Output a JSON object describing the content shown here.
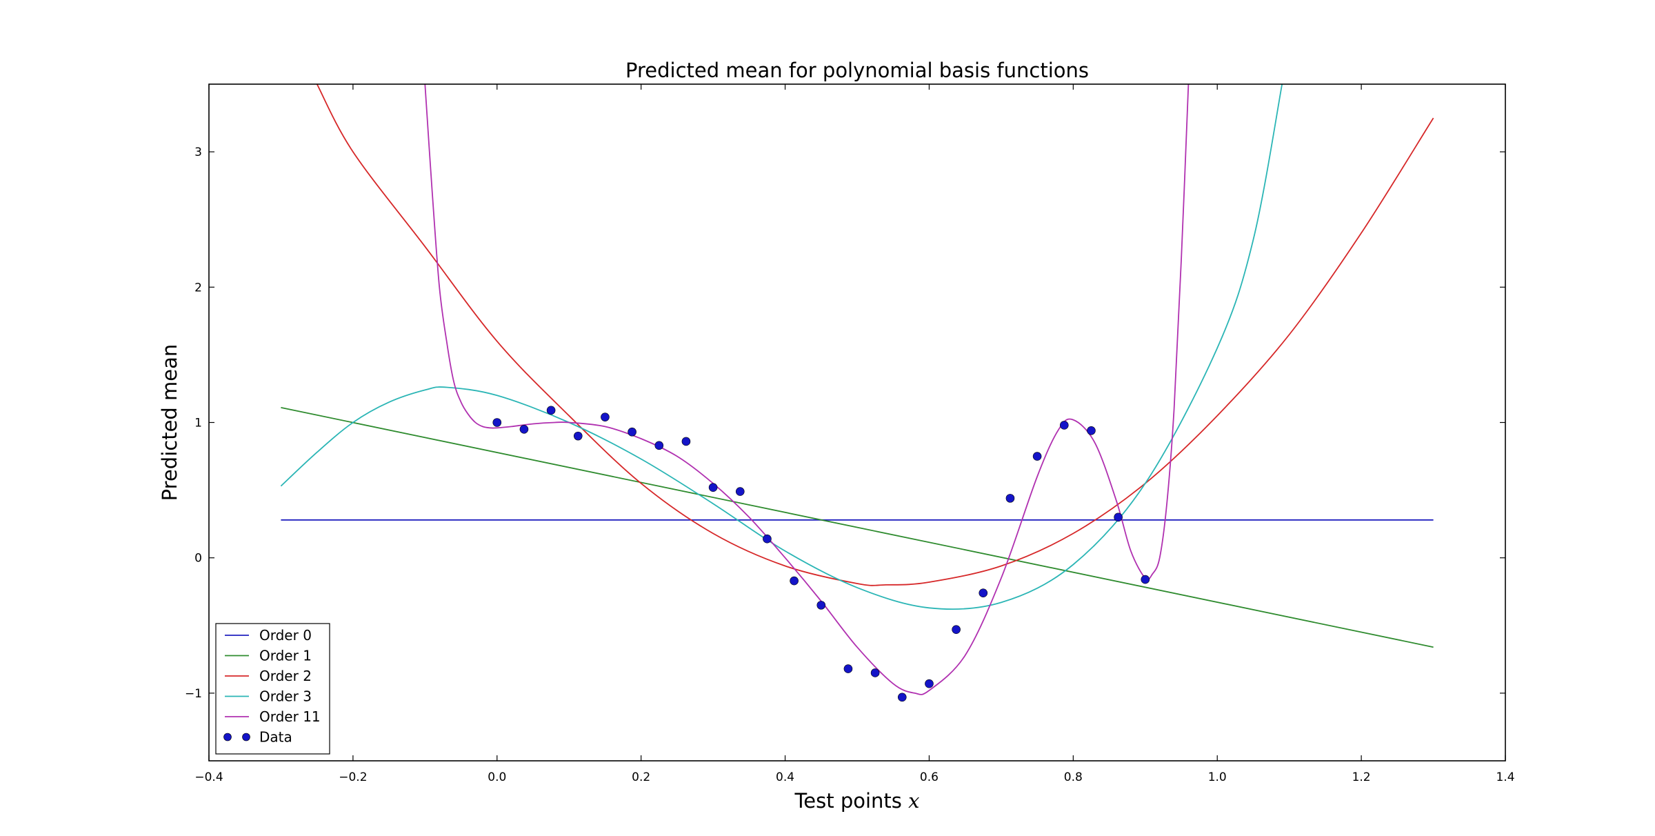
{
  "chart_data": {
    "type": "line",
    "title": "Predicted mean for polynomial basis functions",
    "xlabel": "Test points",
    "xlabel_math": "x",
    "ylabel": "Predicted mean",
    "xlim": [
      -0.4,
      1.4
    ],
    "ylim": [
      -1.5,
      3.5
    ],
    "x_ticks": [
      -0.4,
      -0.2,
      0.0,
      0.2,
      0.4,
      0.6,
      0.8,
      1.0,
      1.2,
      1.4
    ],
    "x_tick_labels": [
      "−0.4",
      "−0.2",
      "0.0",
      "0.2",
      "0.4",
      "0.6",
      "0.8",
      "1.0",
      "1.2",
      "1.4"
    ],
    "y_ticks": [
      -1,
      0,
      1,
      2,
      3
    ],
    "y_tick_labels": [
      "−1",
      "0",
      "1",
      "2",
      "3"
    ],
    "grid": false,
    "legend_position": "lower-left",
    "series": [
      {
        "name": "Order 0",
        "kind": "line",
        "color": "#1f1fbf",
        "x": [
          -0.3,
          1.3
        ],
        "y": [
          0.28,
          0.28
        ]
      },
      {
        "name": "Order 1",
        "kind": "line",
        "color": "#2e8b2e",
        "x": [
          -0.3,
          1.3
        ],
        "y": [
          1.11,
          -0.66
        ]
      },
      {
        "name": "Order 2",
        "kind": "line",
        "color": "#d62728",
        "x": [
          -0.25,
          -0.2,
          -0.1,
          0.0,
          0.1,
          0.2,
          0.3,
          0.4,
          0.5,
          0.54,
          0.6,
          0.7,
          0.8,
          0.9,
          1.0,
          1.1,
          1.2,
          1.3
        ],
        "y": [
          3.5,
          3.0,
          2.3,
          1.6,
          1.05,
          0.55,
          0.18,
          -0.06,
          -0.19,
          -0.2,
          -0.18,
          -0.06,
          0.18,
          0.55,
          1.05,
          1.65,
          2.4,
          3.25
        ]
      },
      {
        "name": "Order 3",
        "kind": "line",
        "color": "#2ab5b5",
        "x": [
          -0.3,
          -0.25,
          -0.2,
          -0.15,
          -0.1,
          -0.07,
          0.0,
          0.1,
          0.2,
          0.3,
          0.4,
          0.5,
          0.6,
          0.7,
          0.8,
          0.9,
          1.0,
          1.05,
          1.09
        ],
        "y": [
          0.53,
          0.78,
          1.0,
          1.15,
          1.24,
          1.26,
          1.2,
          1.0,
          0.73,
          0.4,
          0.05,
          -0.22,
          -0.37,
          -0.33,
          -0.05,
          0.55,
          1.55,
          2.35,
          3.5
        ]
      },
      {
        "name": "Order 11",
        "kind": "line",
        "color": "#b030b0",
        "x": [
          -0.1,
          -0.09,
          -0.08,
          -0.07,
          -0.06,
          -0.05,
          -0.04,
          -0.03,
          -0.02,
          -0.01,
          0.0,
          0.02,
          0.05,
          0.08,
          0.1,
          0.15,
          0.2,
          0.25,
          0.3,
          0.35,
          0.4,
          0.45,
          0.5,
          0.55,
          0.58,
          0.6,
          0.65,
          0.7,
          0.75,
          0.78,
          0.8,
          0.83,
          0.86,
          0.88,
          0.9,
          0.91,
          0.92,
          0.93,
          0.94,
          0.95,
          0.96
        ],
        "y": [
          3.5,
          2.7,
          2.0,
          1.6,
          1.3,
          1.15,
          1.06,
          1.0,
          0.97,
          0.96,
          0.96,
          0.97,
          0.99,
          1.0,
          1.0,
          0.97,
          0.88,
          0.75,
          0.55,
          0.3,
          0.0,
          -0.32,
          -0.66,
          -0.93,
          -1.0,
          -0.98,
          -0.72,
          -0.15,
          0.6,
          0.95,
          1.02,
          0.85,
          0.42,
          0.05,
          -0.15,
          -0.12,
          0.0,
          0.4,
          1.1,
          2.2,
          3.5
        ]
      },
      {
        "name": "Data",
        "kind": "scatter",
        "color": "#1414c8",
        "x": [
          0.0,
          0.0375,
          0.075,
          0.1125,
          0.15,
          0.1875,
          0.225,
          0.2625,
          0.3,
          0.3375,
          0.375,
          0.4125,
          0.45,
          0.4875,
          0.525,
          0.5625,
          0.6,
          0.6375,
          0.675,
          0.7125,
          0.75,
          0.7875,
          0.825,
          0.8625,
          0.9
        ],
        "y": [
          1.0,
          0.95,
          1.09,
          0.9,
          1.04,
          0.93,
          0.83,
          0.86,
          0.52,
          0.49,
          0.14,
          -0.17,
          -0.35,
          -0.82,
          -0.85,
          -1.03,
          -0.93,
          -0.53,
          -0.26,
          0.44,
          0.75,
          0.98,
          0.94,
          0.3,
          -0.16
        ]
      }
    ]
  }
}
